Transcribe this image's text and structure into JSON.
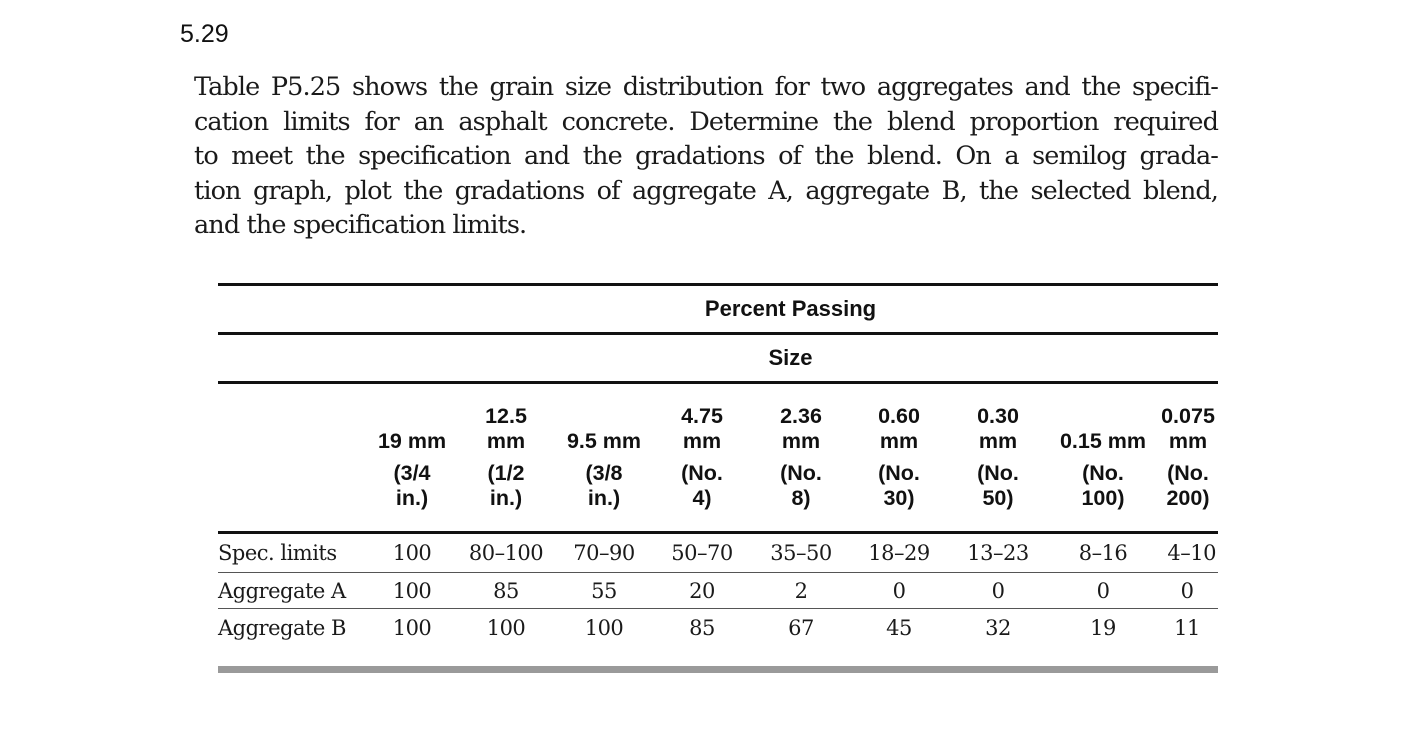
{
  "problem": {
    "number": "5.29",
    "text_lines": [
      "Table P5.25 shows the grain size distribution for two aggregates and the specifi-",
      "cation limits for an asphalt concrete. Determine the blend proportion required",
      "to meet the specification and the gradations of the blend. On a semilog grada-",
      "tion graph, plot the gradations of aggregate A, aggregate B, the selected blend,",
      "and the specification limits."
    ]
  },
  "table": {
    "super_header": "Percent Passing",
    "sub_header": "Size",
    "columns": [
      {
        "size": "19 mm",
        "sieve": "(3/4 in.)",
        "size_lines": [
          "",
          "19 mm"
        ],
        "sieve_lines": [
          "(3/4",
          "in.)"
        ]
      },
      {
        "size": "12.5 mm",
        "sieve": "(1/2 in.)",
        "size_lines": [
          "12.5",
          "mm"
        ],
        "sieve_lines": [
          "(1/2",
          "in.)"
        ]
      },
      {
        "size": "9.5 mm",
        "sieve": "(3/8 in.)",
        "size_lines": [
          "",
          "9.5 mm"
        ],
        "sieve_lines": [
          "(3/8",
          "in.)"
        ]
      },
      {
        "size": "4.75 mm",
        "sieve": "(No. 4)",
        "size_lines": [
          "4.75",
          "mm"
        ],
        "sieve_lines": [
          "(No.",
          "4)"
        ]
      },
      {
        "size": "2.36 mm",
        "sieve": "(No. 8)",
        "size_lines": [
          "2.36",
          "mm"
        ],
        "sieve_lines": [
          "(No.",
          "8)"
        ]
      },
      {
        "size": "0.60 mm",
        "sieve": "(No. 30)",
        "size_lines": [
          "0.60",
          "mm"
        ],
        "sieve_lines": [
          "(No.",
          "30)"
        ]
      },
      {
        "size": "0.30 mm",
        "sieve": "(No. 50)",
        "size_lines": [
          "0.30",
          "mm"
        ],
        "sieve_lines": [
          "(No.",
          "50)"
        ]
      },
      {
        "size": "0.15 mm",
        "sieve": "(No. 100)",
        "size_lines": [
          "",
          "0.15 mm"
        ],
        "sieve_lines": [
          "(No.",
          "100)"
        ]
      },
      {
        "size": "0.075 mm",
        "sieve": "(No. 200)",
        "size_lines": [
          "0.075",
          "mm"
        ],
        "sieve_lines": [
          "(No.",
          "200)"
        ]
      }
    ],
    "rows": [
      {
        "label": "Spec. limits",
        "values": [
          "100",
          "80–100",
          "70–90",
          "50–70",
          "35–50",
          "18–29",
          "13–23",
          "8–16",
          "4–10"
        ]
      },
      {
        "label": "Aggregate A",
        "values": [
          "100",
          "85",
          "55",
          "20",
          "2",
          "0",
          "0",
          "0",
          "0"
        ]
      },
      {
        "label": "Aggregate B",
        "values": [
          "100",
          "100",
          "100",
          "85",
          "67",
          "45",
          "32",
          "19",
          "11"
        ]
      }
    ]
  }
}
